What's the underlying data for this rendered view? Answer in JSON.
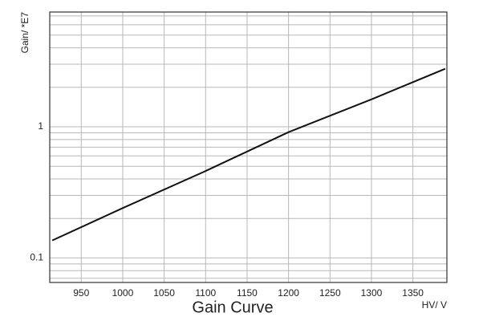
{
  "chart_data": {
    "type": "line",
    "title": "Gain Curve",
    "x_label": "HV/ V",
    "y_label": "Gain/ *E7",
    "x": [
      915,
      1000,
      1100,
      1200,
      1300,
      1389
    ],
    "values": [
      0.136,
      0.24,
      0.46,
      0.91,
      1.62,
      2.77
    ],
    "color": "#111111",
    "xlim": [
      912,
      1391
    ],
    "xticks": [
      950,
      1000,
      1050,
      1100,
      1150,
      1200,
      1250,
      1300,
      1350
    ],
    "ylim": [
      0.065,
      7.5
    ],
    "yticks": [
      0.1,
      1
    ],
    "log_y": true,
    "y_minor_ticks": [
      0.07,
      0.08,
      0.09,
      0.2,
      0.3,
      0.4,
      0.5,
      0.6,
      0.7,
      0.8,
      0.9,
      2,
      3,
      4,
      5,
      6,
      7
    ],
    "grid": true
  }
}
